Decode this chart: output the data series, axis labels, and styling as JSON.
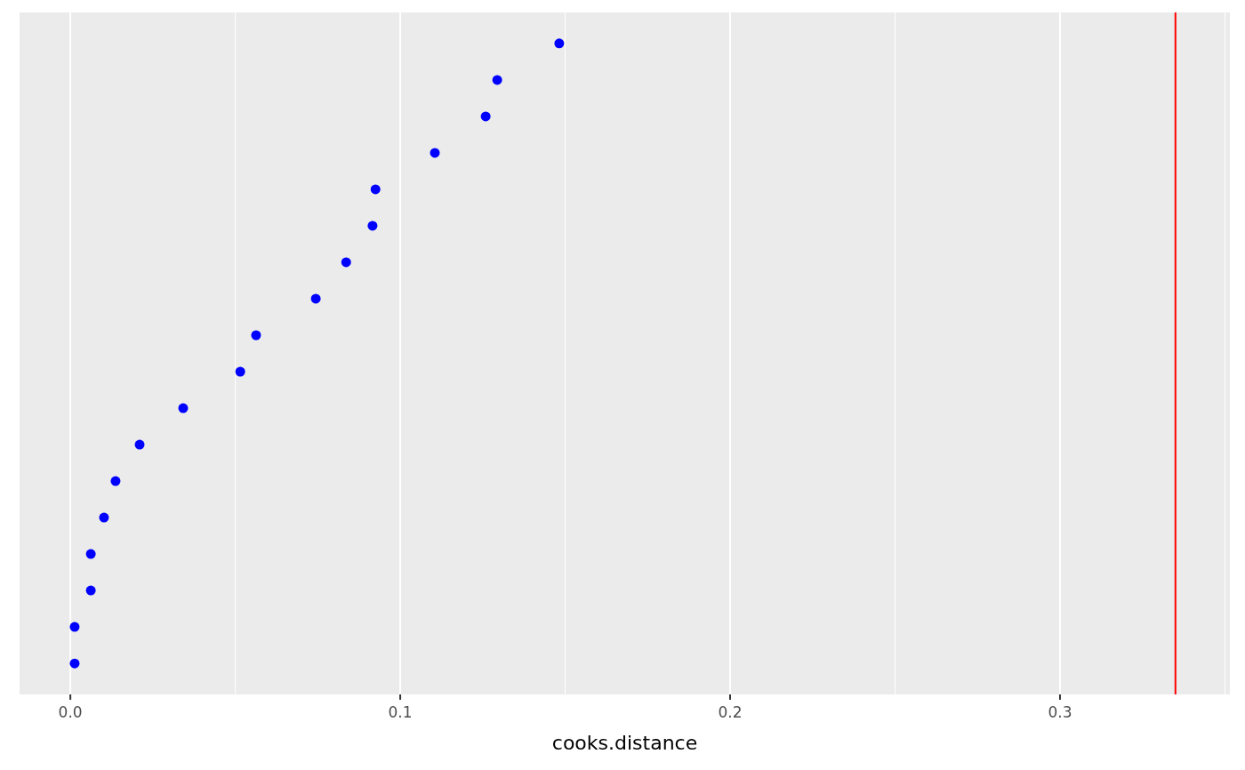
{
  "chart_data": {
    "type": "scatter",
    "orientation": "horizontal",
    "xlabel": "cooks.distance",
    "categories": [
      null,
      null,
      null,
      null,
      null,
      null,
      null,
      null,
      null,
      null,
      null,
      null,
      null,
      null,
      null,
      null,
      null,
      null
    ],
    "series": [
      {
        "color": "#0000ff",
        "values": [
          0.1482,
          0.1294,
          0.1259,
          0.1105,
          0.0925,
          0.0916,
          0.0836,
          0.0744,
          0.0563,
          0.0515,
          0.0342,
          0.021,
          0.0137,
          0.0102,
          0.0062,
          0.0062,
          0.0013,
          0.0013
        ]
      }
    ],
    "xlim": [
      -0.0154,
      0.3515
    ],
    "xticks": [
      {
        "value": 0,
        "label": "0.0"
      },
      0.1,
      0.2,
      0.3
    ],
    "grid": "x",
    "marker": "circle",
    "ref_lines": [
      {
        "axis": "x",
        "value": 0.335,
        "color": "#ff0000"
      }
    ]
  }
}
